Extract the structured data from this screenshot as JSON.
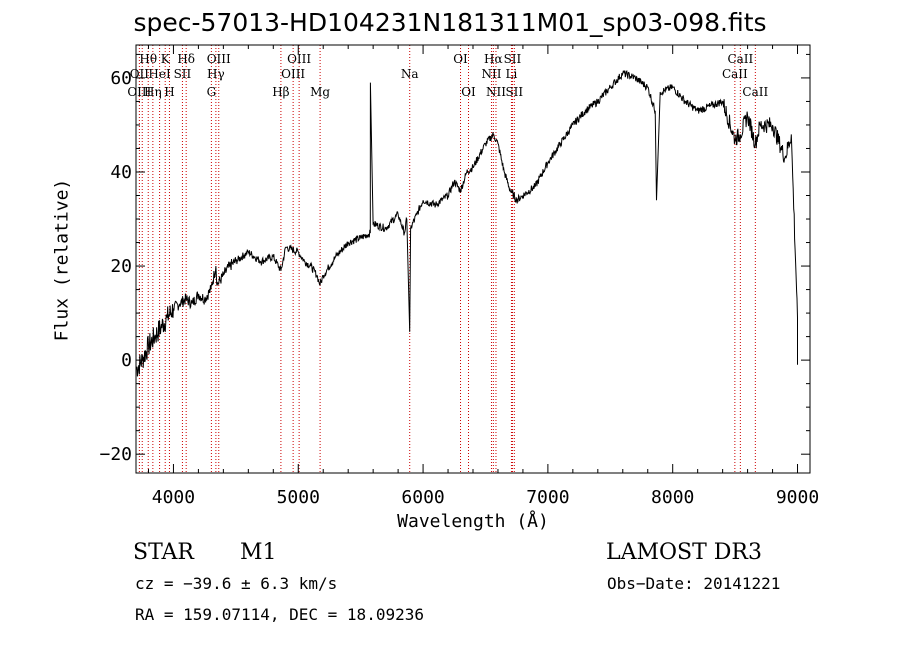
{
  "chart_data": {
    "type": "line",
    "title": "spec-57013-HD104231N181311M01_sp03-098.fits",
    "xlabel": "Wavelength (Å)",
    "ylabel": "Flux (relative)",
    "xlim": [
      3700,
      9100
    ],
    "ylim": [
      -24,
      67
    ],
    "xticks": [
      4000,
      5000,
      6000,
      7000,
      8000,
      9000
    ],
    "yticks": [
      -20,
      0,
      20,
      40,
      60
    ],
    "grid": false,
    "series": [
      {
        "name": "spectrum",
        "x": [
          3700,
          3750,
          3800,
          3850,
          3900,
          3950,
          4000,
          4050,
          4100,
          4150,
          4200,
          4250,
          4300,
          4340,
          4350,
          4400,
          4450,
          4500,
          4600,
          4700,
          4800,
          4861,
          4900,
          5000,
          5050,
          5100,
          5150,
          5175,
          5200,
          5300,
          5400,
          5500,
          5577,
          5578,
          5600,
          5700,
          5800,
          5850,
          5870,
          5893,
          5900,
          5950,
          6000,
          6100,
          6200,
          6250,
          6300,
          6350,
          6400,
          6500,
          6563,
          6600,
          6650,
          6700,
          6750,
          6800,
          6900,
          7000,
          7100,
          7200,
          7300,
          7400,
          7500,
          7600,
          7700,
          7800,
          7860,
          7870,
          7900,
          8000,
          8100,
          8200,
          8300,
          8400,
          8498,
          8542,
          8600,
          8662,
          8700,
          8800,
          8900,
          8950,
          9000
        ],
        "y": [
          -2,
          0,
          3,
          5,
          7,
          9,
          11,
          12,
          13,
          12,
          14,
          13,
          15,
          20,
          16,
          18,
          20,
          21,
          23,
          21,
          22,
          19,
          24,
          23,
          21,
          20,
          18,
          16,
          18,
          22,
          25,
          26,
          27,
          59,
          29,
          28,
          31,
          27,
          30,
          6,
          28,
          31,
          34,
          33,
          35,
          38,
          36,
          40,
          41,
          46,
          48,
          46,
          40,
          36,
          34,
          35,
          37,
          42,
          46,
          50,
          53,
          55,
          58,
          61,
          60,
          58,
          53,
          34,
          57,
          58,
          55,
          53,
          54,
          55,
          47,
          48,
          52,
          46,
          50,
          50,
          43,
          48,
          9
        ]
      }
    ],
    "line_labels": [
      {
        "text": "Hθ",
        "x": 3798,
        "row": 1
      },
      {
        "text": "OII",
        "x": 3727,
        "row": 2
      },
      {
        "text": "OIII",
        "x": 3727,
        "row": 3
      },
      {
        "text": "K",
        "x": 3934,
        "row": 1
      },
      {
        "text": "HeI",
        "x": 3889,
        "row": 2
      },
      {
        "text": "Hη",
        "x": 3835,
        "row": 3
      },
      {
        "text": "Hδ",
        "x": 4102,
        "row": 1
      },
      {
        "text": "SII",
        "x": 4072,
        "row": 2
      },
      {
        "text": "H",
        "x": 3968,
        "row": 3
      },
      {
        "text": "OIII",
        "x": 4363,
        "row": 1
      },
      {
        "text": "Hγ",
        "x": 4340,
        "row": 2
      },
      {
        "text": "G",
        "x": 4304,
        "row": 3
      },
      {
        "text": "OIII",
        "x": 5007,
        "row": 1
      },
      {
        "text": "OIII",
        "x": 4959,
        "row": 2
      },
      {
        "text": "Hβ",
        "x": 4861,
        "row": 3
      },
      {
        "text": "Mg",
        "x": 5175,
        "row": 3
      },
      {
        "text": "Na",
        "x": 5893,
        "row": 2
      },
      {
        "text": "OI",
        "x": 6300,
        "row": 1
      },
      {
        "text": "OI",
        "x": 6364,
        "row": 3
      },
      {
        "text": "Hα",
        "x": 6563,
        "row": 1
      },
      {
        "text": "SII",
        "x": 6716,
        "row": 1
      },
      {
        "text": "NII",
        "x": 6548,
        "row": 2
      },
      {
        "text": "Li",
        "x": 6708,
        "row": 2
      },
      {
        "text": "NII",
        "x": 6584,
        "row": 3
      },
      {
        "text": "SII",
        "x": 6731,
        "row": 3
      },
      {
        "text": "CaII",
        "x": 8542,
        "row": 1
      },
      {
        "text": "CaII",
        "x": 8498,
        "row": 2
      },
      {
        "text": "CaII",
        "x": 8662,
        "row": 3
      }
    ],
    "marker_lines": [
      3727,
      3750,
      3798,
      3835,
      3889,
      3934,
      3968,
      4072,
      4102,
      4304,
      4340,
      4363,
      4861,
      4959,
      5007,
      5175,
      5893,
      6300,
      6364,
      6548,
      6563,
      6584,
      6708,
      6716,
      6731,
      8498,
      8542,
      8662
    ],
    "colors": {
      "spectrum": "#000000",
      "marker": "#cc0000",
      "axes": "#000000"
    }
  },
  "footer": {
    "object_class": "STAR",
    "subclass": "M1",
    "survey": "LAMOST DR3",
    "cz": "cz = −39.6 ± 6.3 km/s",
    "obs_date": "Obs−Date: 20141221",
    "coords": "RA = 159.07114, DEC =  18.09236"
  }
}
